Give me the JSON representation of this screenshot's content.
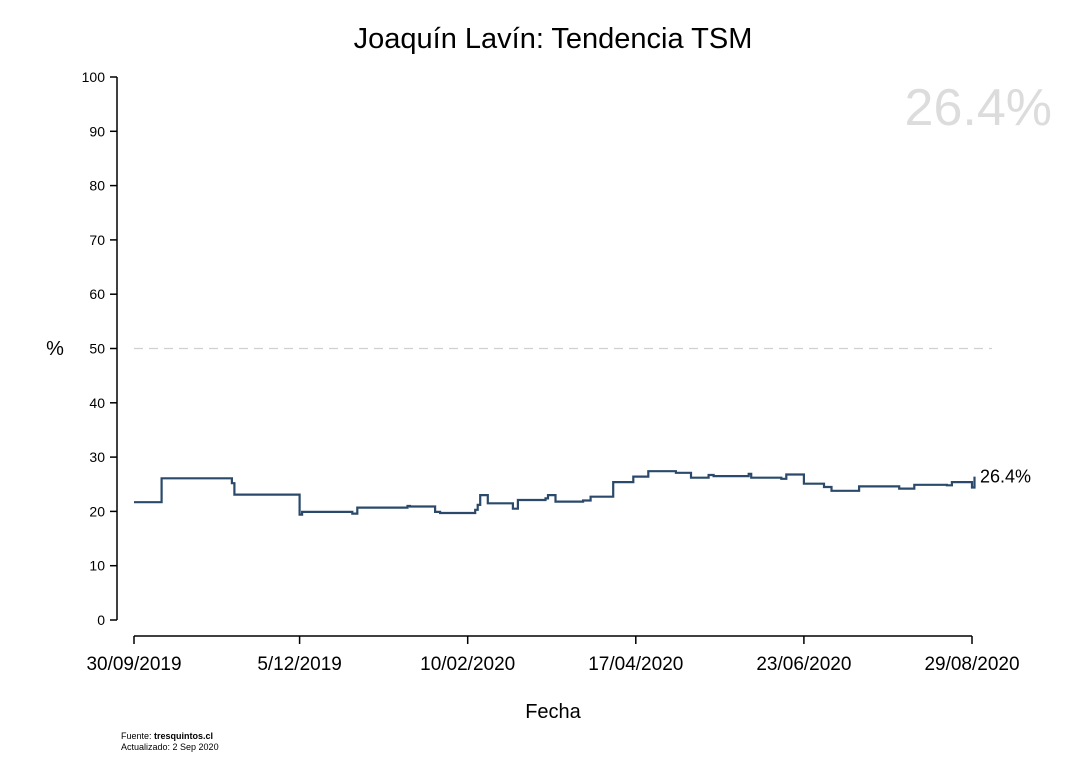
{
  "chart_data": {
    "type": "line",
    "title": "Joaquín Lavín: Tendencia TSM",
    "xlabel": "Fecha",
    "ylabel": "%",
    "ylim": [
      0,
      100
    ],
    "y_ticks": [
      0,
      10,
      20,
      30,
      40,
      50,
      60,
      70,
      80,
      90,
      100
    ],
    "x_ticks": [
      "30/09/2019",
      "5/12/2019",
      "10/02/2020",
      "17/04/2020",
      "23/06/2020",
      "29/08/2020"
    ],
    "x_range": [
      "30/09/2019",
      "29/08/2020"
    ],
    "reference_line": 50,
    "reference_style": "dashed light gray",
    "line_style": "step",
    "grid": false,
    "series": [
      {
        "color": "#2b4a6b",
        "x": [
          "2019-09-30",
          "2019-10-11",
          "2019-11-08",
          "2019-11-09",
          "2019-12-05",
          "2019-12-06",
          "2019-12-20",
          "2019-12-26",
          "2019-12-28",
          "2020-01-17",
          "2020-01-18",
          "2020-01-28",
          "2020-01-30",
          "2020-02-13",
          "2020-02-14",
          "2020-02-15",
          "2020-02-18",
          "2020-02-28",
          "2020-03-01",
          "2020-03-12",
          "2020-03-13",
          "2020-03-16",
          "2020-03-27",
          "2020-03-30",
          "2020-04-08",
          "2020-04-16",
          "2020-04-22",
          "2020-05-03",
          "2020-05-09",
          "2020-05-16",
          "2020-05-18",
          "2020-06-01",
          "2020-06-02",
          "2020-06-14",
          "2020-06-16",
          "2020-06-23",
          "2020-07-01",
          "2020-07-04",
          "2020-07-15",
          "2020-07-31",
          "2020-08-06",
          "2020-08-19",
          "2020-08-21",
          "2020-08-29",
          "2020-08-30"
        ],
        "y": [
          21.7,
          26.1,
          25.2,
          23.1,
          19.4,
          19.9,
          19.9,
          19.6,
          20.7,
          21.0,
          20.9,
          19.9,
          19.7,
          20.3,
          21.2,
          23.0,
          21.5,
          20.5,
          22.1,
          22.4,
          23.0,
          21.8,
          22.0,
          22.7,
          25.4,
          26.4,
          27.4,
          27.1,
          26.2,
          26.7,
          26.5,
          26.9,
          26.2,
          26.0,
          26.8,
          25.1,
          24.5,
          23.8,
          24.6,
          24.2,
          24.9,
          24.8,
          25.4,
          24.4,
          26.4
        ]
      }
    ],
    "end_label": "26.4%",
    "watermark_value": "26.4%"
  },
  "footer": {
    "source_prefix": "Fuente: ",
    "source_name": "tresquintos.cl",
    "updated": "Actualizado: 2 Sep 2020"
  }
}
